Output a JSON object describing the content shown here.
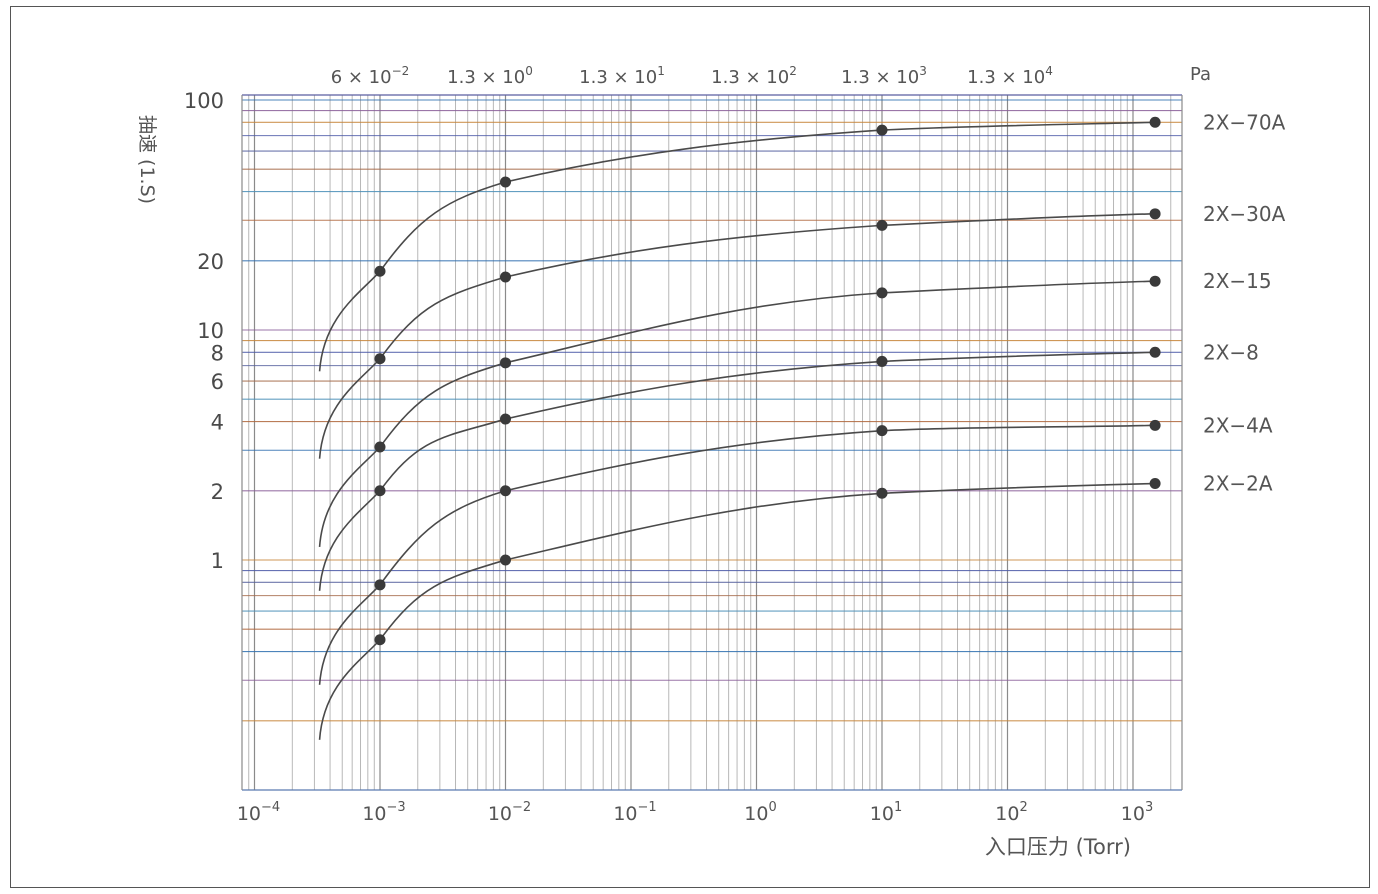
{
  "chart_data": {
    "type": "line",
    "xlabel": "入口压力 (Torr)",
    "ylabel": "抽速 (1.S)",
    "x_scale": "log",
    "y_scale": "log",
    "grid": true,
    "x_ticks": [
      {
        "base": "10",
        "exp": "−4"
      },
      {
        "base": "10",
        "exp": "−3"
      },
      {
        "base": "10",
        "exp": "−2"
      },
      {
        "base": "10",
        "exp": "−1"
      },
      {
        "base": "10",
        "exp": "0"
      },
      {
        "base": "10",
        "exp": "1"
      },
      {
        "base": "10",
        "exp": "2"
      },
      {
        "base": "10",
        "exp": "3"
      }
    ],
    "secondary_x_unit": "Pa",
    "secondary_x_ticks": [
      {
        "base": "6 × 10",
        "exp": "−2"
      },
      {
        "base": "1.3 × 10",
        "exp": "0"
      },
      {
        "base": "1.3 × 10",
        "exp": "1"
      },
      {
        "base": "1.3 × 10",
        "exp": "2"
      },
      {
        "base": "1.3 × 10",
        "exp": "3"
      },
      {
        "base": "1.3 × 10",
        "exp": "4"
      }
    ],
    "y_ticks": [
      "100",
      "20",
      "10",
      "8",
      "6",
      "4",
      "2",
      "1"
    ],
    "series": [
      {
        "name": "2X−70A",
        "x": [
          0.001,
          0.01,
          10,
          1500
        ],
        "y": [
          18,
          44,
          74,
          80
        ]
      },
      {
        "name": "2X−30A",
        "x": [
          0.001,
          0.01,
          10,
          1500
        ],
        "y": [
          7.5,
          17,
          28.5,
          32
        ]
      },
      {
        "name": "2X−15",
        "x": [
          0.001,
          0.01,
          10,
          1500
        ],
        "y": [
          3.1,
          7.2,
          14.5,
          16.3
        ]
      },
      {
        "name": "2X−8",
        "x": [
          0.001,
          0.01,
          10,
          1500
        ],
        "y": [
          2.0,
          4.1,
          7.3,
          8.0
        ]
      },
      {
        "name": "2X−4A",
        "x": [
          0.001,
          0.01,
          10,
          1500
        ],
        "y": [
          0.78,
          2.0,
          3.65,
          3.85
        ]
      },
      {
        "name": "2X−2A",
        "x": [
          0.001,
          0.01,
          10,
          1500
        ],
        "y": [
          0.45,
          1.0,
          1.95,
          2.15
        ]
      }
    ]
  }
}
